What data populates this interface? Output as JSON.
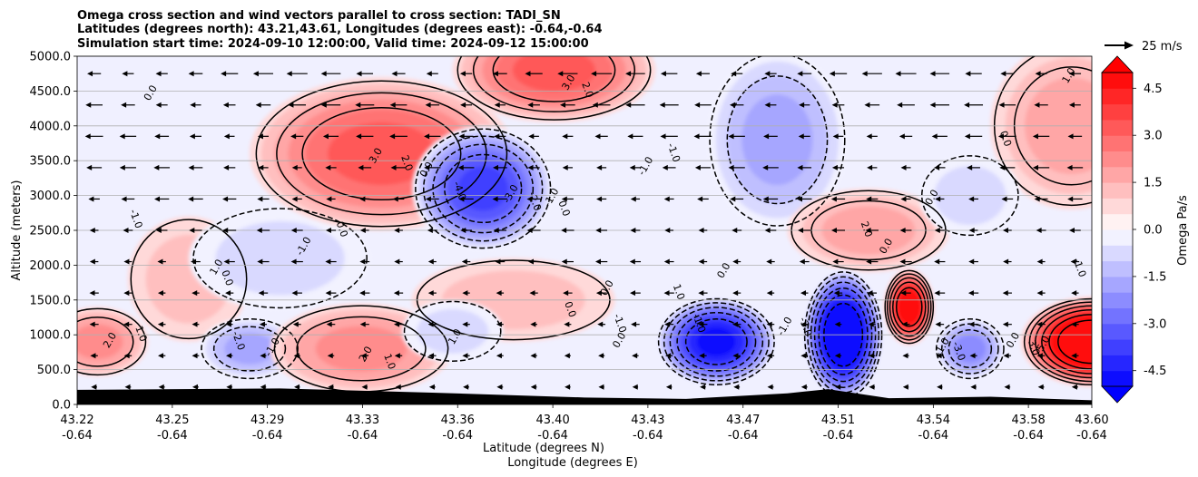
{
  "chart_data": {
    "type": "heatmap",
    "title": [
      "Omega cross section and wind vectors parallel to cross section: TADI_SN",
      "Latitudes (degrees north): 43.21,43.61, Longitudes (degrees east): -0.64,-0.64",
      "Simulation start time: 2024-09-10 12:00:00, Valid time: 2024-09-12 15:00:00"
    ],
    "xlabel": [
      "Latitude (degrees N)",
      "Longitude (degrees E)"
    ],
    "ylabel": "Altitude (meters)",
    "x_ticks": [
      {
        "lat": "43.22",
        "lon": "-0.64"
      },
      {
        "lat": "43.25",
        "lon": "-0.64"
      },
      {
        "lat": "43.29",
        "lon": "-0.64"
      },
      {
        "lat": "43.33",
        "lon": "-0.64"
      },
      {
        "lat": "43.36",
        "lon": "-0.64"
      },
      {
        "lat": "43.40",
        "lon": "-0.64"
      },
      {
        "lat": "43.43",
        "lon": "-0.64"
      },
      {
        "lat": "43.47",
        "lon": "-0.64"
      },
      {
        "lat": "43.51",
        "lon": "-0.64"
      },
      {
        "lat": "43.54",
        "lon": "-0.64"
      },
      {
        "lat": "43.58",
        "lon": "-0.64"
      },
      {
        "lat": "43.60",
        "lon": "-0.64"
      }
    ],
    "x_tick_fraction": [
      0.0,
      0.0938,
      0.1875,
      0.2813,
      0.375,
      0.4688,
      0.5625,
      0.6563,
      0.75,
      0.8438,
      0.9375,
      1.0
    ],
    "ylim": [
      0,
      5000
    ],
    "y_ticks": [
      "0.0",
      "500.0",
      "1000.0",
      "1500.0",
      "2000.0",
      "2500.0",
      "3000.0",
      "3500.0",
      "4000.0",
      "4500.0",
      "5000.0"
    ],
    "grid": "horizontal",
    "colorbar": {
      "label": "Omega Pa/s",
      "range": [
        -5.0,
        5.0
      ],
      "ticks": [
        "-4.5",
        "-3.0",
        "-1.5",
        "0.0",
        "1.5",
        "3.0",
        "4.5"
      ],
      "extend": "both",
      "colors": {
        "negative": "#0000ff",
        "neutral": "#ffffff",
        "positive": "#ff0000"
      }
    },
    "vector_key": {
      "label": "25 m/s"
    },
    "omega_features": [
      {
        "sign": "positive",
        "peak": 2.0,
        "x": 0.02,
        "alt": 900,
        "rx": 0.05,
        "ry": 500
      },
      {
        "sign": "positive",
        "peak": 1.0,
        "x": 0.11,
        "alt": 1800,
        "rx": 0.06,
        "ry": 900
      },
      {
        "sign": "negative",
        "peak": -1.0,
        "x": 0.2,
        "alt": 2100,
        "rx": 0.09,
        "ry": 750
      },
      {
        "sign": "negative",
        "peak": -2.0,
        "x": 0.17,
        "alt": 800,
        "rx": 0.05,
        "ry": 450
      },
      {
        "sign": "positive",
        "peak": 3.0,
        "x": 0.3,
        "alt": 3600,
        "rx": 0.13,
        "ry": 1100
      },
      {
        "sign": "positive",
        "peak": 2.0,
        "x": 0.28,
        "alt": 800,
        "rx": 0.09,
        "ry": 650
      },
      {
        "sign": "positive",
        "peak": 3.0,
        "x": 0.47,
        "alt": 4800,
        "rx": 0.1,
        "ry": 750
      },
      {
        "sign": "negative",
        "peak": -4.0,
        "x": 0.4,
        "alt": 3100,
        "rx": 0.07,
        "ry": 900
      },
      {
        "sign": "positive",
        "peak": 1.0,
        "x": 0.43,
        "alt": 1500,
        "rx": 0.1,
        "ry": 600
      },
      {
        "sign": "negative",
        "peak": -1.0,
        "x": 0.37,
        "alt": 1050,
        "rx": 0.05,
        "ry": 450
      },
      {
        "sign": "negative",
        "peak": -2.0,
        "x": 0.69,
        "alt": 3800,
        "rx": 0.07,
        "ry": 1300
      },
      {
        "sign": "negative",
        "peak": -5.0,
        "x": 0.63,
        "alt": 900,
        "rx": 0.06,
        "ry": 650
      },
      {
        "sign": "positive",
        "peak": 1.5,
        "x": 0.78,
        "alt": 2500,
        "rx": 0.08,
        "ry": 600
      },
      {
        "sign": "negative",
        "peak": -6.0,
        "x": 0.755,
        "alt": 1000,
        "rx": 0.04,
        "ry": 950
      },
      {
        "sign": "positive",
        "peak": 5.0,
        "x": 0.82,
        "alt": 1400,
        "rx": 0.025,
        "ry": 550
      },
      {
        "sign": "negative",
        "peak": -2.5,
        "x": 0.88,
        "alt": 800,
        "rx": 0.035,
        "ry": 450
      },
      {
        "sign": "positive",
        "peak": 1.5,
        "x": 0.98,
        "alt": 4000,
        "rx": 0.08,
        "ry": 1200
      },
      {
        "sign": "negative",
        "peak": -1.0,
        "x": 0.88,
        "alt": 3000,
        "rx": 0.05,
        "ry": 600
      },
      {
        "sign": "positive",
        "peak": 6.0,
        "x": 1.0,
        "alt": 900,
        "rx": 0.07,
        "ry": 650
      }
    ],
    "contour_labels": [
      {
        "text": "0.0",
        "x": 0.075,
        "alt": 4450
      },
      {
        "text": "-1.0",
        "x": 0.055,
        "alt": 2650
      },
      {
        "text": "2.0",
        "x": 0.035,
        "alt": 900
      },
      {
        "text": "1.0",
        "x": 0.06,
        "alt": 1000
      },
      {
        "text": "1.0",
        "x": 0.14,
        "alt": 1950
      },
      {
        "text": "0.0",
        "x": 0.145,
        "alt": 1800
      },
      {
        "text": "-1.0",
        "x": 0.226,
        "alt": 2250
      },
      {
        "text": "-2.0",
        "x": 0.156,
        "alt": 900
      },
      {
        "text": "-1.0",
        "x": 0.195,
        "alt": 800
      },
      {
        "text": "0.0",
        "x": 0.258,
        "alt": 2500
      },
      {
        "text": "3.0",
        "x": 0.297,
        "alt": 3550
      },
      {
        "text": "2.0",
        "x": 0.322,
        "alt": 3450
      },
      {
        "text": "2.0",
        "x": 0.287,
        "alt": 700
      },
      {
        "text": "1.0",
        "x": 0.305,
        "alt": 600
      },
      {
        "text": "3.0",
        "x": 0.487,
        "alt": 4600
      },
      {
        "text": "2.0",
        "x": 0.5,
        "alt": 4500
      },
      {
        "text": "0.0",
        "x": 0.347,
        "alt": 3350
      },
      {
        "text": "-4.0",
        "x": 0.374,
        "alt": 3050
      },
      {
        "text": "-3.0",
        "x": 0.43,
        "alt": 3000
      },
      {
        "text": "-2.0",
        "x": 0.448,
        "alt": 2900
      },
      {
        "text": "-1.0",
        "x": 0.47,
        "alt": 2950
      },
      {
        "text": "0.0",
        "x": 0.477,
        "alt": 2800
      },
      {
        "text": "1.0",
        "x": 0.375,
        "alt": 950
      },
      {
        "text": "0.0",
        "x": 0.483,
        "alt": 1350
      },
      {
        "text": "0.0",
        "x": 0.525,
        "alt": 1650
      },
      {
        "text": "-1.0",
        "x": 0.532,
        "alt": 1150
      },
      {
        "text": "0.0",
        "x": 0.537,
        "alt": 900
      },
      {
        "text": "1.0",
        "x": 0.59,
        "alt": 1600
      },
      {
        "text": "-1.0",
        "x": 0.563,
        "alt": 3400
      },
      {
        "text": "-1.0",
        "x": 0.585,
        "alt": 3600
      },
      {
        "text": "0.0",
        "x": 0.64,
        "alt": 1900
      },
      {
        "text": "-1.0",
        "x": 0.61,
        "alt": 1150
      },
      {
        "text": "-1.0",
        "x": 0.7,
        "alt": 1100
      },
      {
        "text": "-3.0",
        "x": 0.715,
        "alt": 1100
      },
      {
        "text": "0.0",
        "x": 0.8,
        "alt": 2250
      },
      {
        "text": "2.0",
        "x": 0.775,
        "alt": 2500
      },
      {
        "text": "-1.0",
        "x": 0.855,
        "alt": 800
      },
      {
        "text": "-3.0",
        "x": 0.866,
        "alt": 750
      },
      {
        "text": "0.0",
        "x": 0.845,
        "alt": 2950
      },
      {
        "text": "0.0",
        "x": 0.912,
        "alt": 3800
      },
      {
        "text": "1.0",
        "x": 0.98,
        "alt": 4700
      },
      {
        "text": "-1.0",
        "x": 0.985,
        "alt": 1950
      },
      {
        "text": "0.0",
        "x": 0.925,
        "alt": 900
      },
      {
        "text": "3.0",
        "x": 0.94,
        "alt": 800
      },
      {
        "text": "5.0",
        "x": 0.955,
        "alt": 850
      }
    ]
  }
}
